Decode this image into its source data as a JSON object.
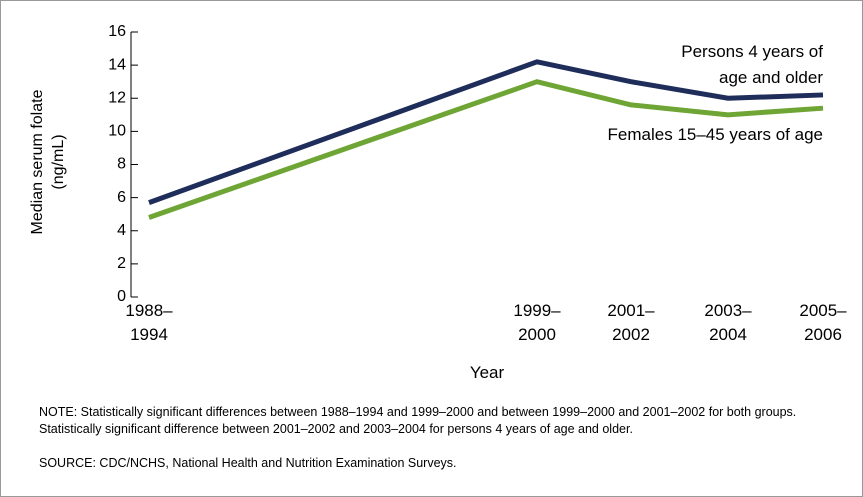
{
  "chart_data": {
    "type": "line",
    "categories": [
      "1988–1994",
      "1999–2000",
      "2001–2002",
      "2003–2004",
      "2005–2006"
    ],
    "series": [
      {
        "name": "Persons 4 years of age and older",
        "color": "#1f2d5a",
        "values": [
          5.7,
          14.2,
          13.0,
          12.0,
          12.2
        ]
      },
      {
        "name": "Females 15–45 years of age",
        "color": "#6ea535",
        "values": [
          4.8,
          13.0,
          11.6,
          11.0,
          11.4
        ]
      }
    ],
    "ylabel": "Median serum folate (ng/mL)",
    "xlabel": "Year",
    "ylim": [
      0,
      16
    ],
    "yticks": [
      0,
      2,
      4,
      6,
      8,
      10,
      12,
      14,
      16
    ],
    "note": "NOTE: Statistically significant differences between 1988–1994 and 1999–2000 and between 1999–2000 and 2001–2002 for both groups.  Statistically significant difference between 2001–2002 and 2003–2004 for persons 4 years of age and older.",
    "source": "SOURCE: CDC/NCHS, National Health and Nutrition Examination Surveys."
  }
}
